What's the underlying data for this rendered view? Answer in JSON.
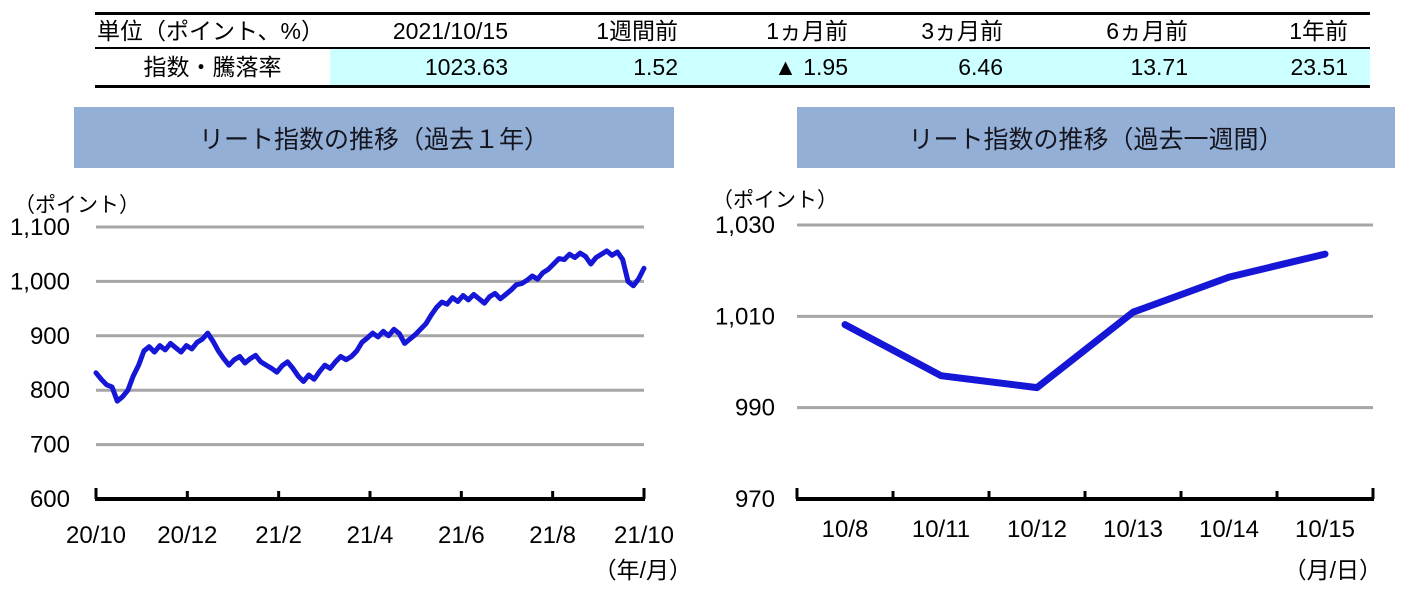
{
  "table": {
    "columns": [
      "単位（ポイント、%）",
      "2021/10/15",
      "1週間前",
      "1ヵ月前",
      "3ヵ月前",
      "6ヵ月前",
      "1年前"
    ],
    "row_label": "指数・騰落率",
    "values": [
      "1023.63",
      "1.52",
      "▲ 1.95",
      "6.46",
      "13.71",
      "23.51"
    ]
  },
  "colors": {
    "highlight_cell_bg": "#CCFFFF",
    "title_bar_bg": "#93AFD6",
    "line_color": "#1616D6",
    "gridline_color": "#A6A6A6",
    "axis_color": "#000000"
  },
  "chart_data": [
    {
      "type": "line",
      "title": "リート指数の推移（過去１年）",
      "unit_label": "（ポイント）",
      "axis_unit_label": "（年/月）",
      "x_tick_labels": [
        "20/10",
        "20/12",
        "21/2",
        "21/4",
        "21/6",
        "21/8",
        "21/10"
      ],
      "y_ticks": [
        600,
        700,
        800,
        900,
        1000,
        1100
      ],
      "ylim": [
        600,
        1100
      ],
      "grid": true,
      "legend": "none",
      "line_color": "#1616D6",
      "values": [
        832,
        820,
        810,
        806,
        780,
        788,
        800,
        826,
        846,
        872,
        880,
        870,
        882,
        874,
        886,
        878,
        870,
        882,
        876,
        888,
        894,
        905,
        890,
        872,
        858,
        846,
        856,
        862,
        850,
        858,
        864,
        852,
        846,
        840,
        833,
        845,
        852,
        840,
        826,
        816,
        828,
        820,
        834,
        846,
        840,
        852,
        862,
        856,
        862,
        872,
        888,
        896,
        905,
        898,
        908,
        900,
        912,
        904,
        886,
        894,
        902,
        912,
        922,
        938,
        952,
        962,
        958,
        970,
        963,
        974,
        966,
        976,
        968,
        960,
        972,
        978,
        968,
        976,
        984,
        994,
        996,
        1002,
        1010,
        1004,
        1016,
        1022,
        1032,
        1042,
        1040,
        1050,
        1044,
        1052,
        1046,
        1032,
        1044,
        1050,
        1056,
        1048,
        1054,
        1040,
        1000,
        992,
        1005,
        1024
      ]
    },
    {
      "type": "line",
      "title": "リート指数の推移（過去一週間）",
      "unit_label": "（ポイント）",
      "axis_unit_label": "（月/日）",
      "categories": [
        "10/8",
        "10/11",
        "10/12",
        "10/13",
        "10/14",
        "10/15"
      ],
      "y_ticks": [
        970,
        990,
        1010,
        1030
      ],
      "ylim": [
        970,
        1030
      ],
      "grid": true,
      "legend": "none",
      "line_color": "#1616D6",
      "values": [
        1008.2,
        997.0,
        994.4,
        1010.9,
        1018.6,
        1023.63
      ]
    }
  ]
}
